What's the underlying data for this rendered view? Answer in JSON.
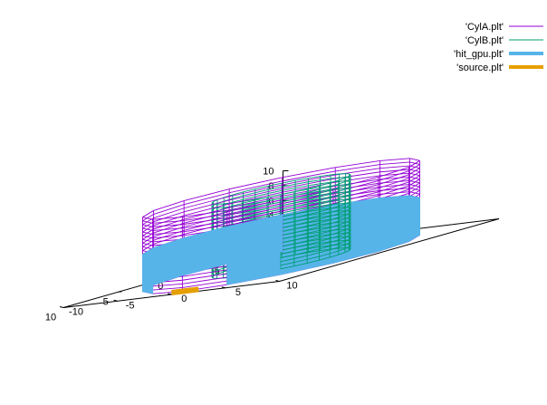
{
  "chart_data": {
    "type": "3d-surface",
    "title": "",
    "xlabel": "",
    "ylabel": "",
    "zlabel": "",
    "x_range": [
      -10,
      10
    ],
    "y_range": [
      -10,
      10
    ],
    "z_range": [
      0,
      10
    ],
    "x_ticks": [
      -10,
      -5,
      0,
      5,
      10
    ],
    "y_ticks": [
      -10,
      -5,
      0,
      5,
      10
    ],
    "z_ticks": [
      0,
      2,
      4,
      6,
      8,
      10
    ],
    "grid": false,
    "legend_position": "top-right",
    "series": [
      {
        "name": "'CylA.plt'",
        "color": "#9400d3",
        "style": "wireframe cylinder",
        "radius": 9,
        "z_range": [
          0,
          10
        ],
        "facets": 16
      },
      {
        "name": "'CylB.plt'",
        "color": "#009e73",
        "style": "wireframe cylinder",
        "radius": 4.5,
        "z_range": [
          0,
          10
        ],
        "facets": 32
      },
      {
        "name": "'hit_gpu.plt'",
        "color": "#56b4e9",
        "style": "filled band on outer cylinder",
        "radius": 9,
        "z_range": [
          0,
          5
        ]
      },
      {
        "name": "'source.plt'",
        "color": "#e69f00",
        "style": "line segment",
        "x": [
          9,
          9
        ],
        "y": [
          -1,
          1.5
        ],
        "z": [
          0,
          0
        ]
      }
    ]
  }
}
